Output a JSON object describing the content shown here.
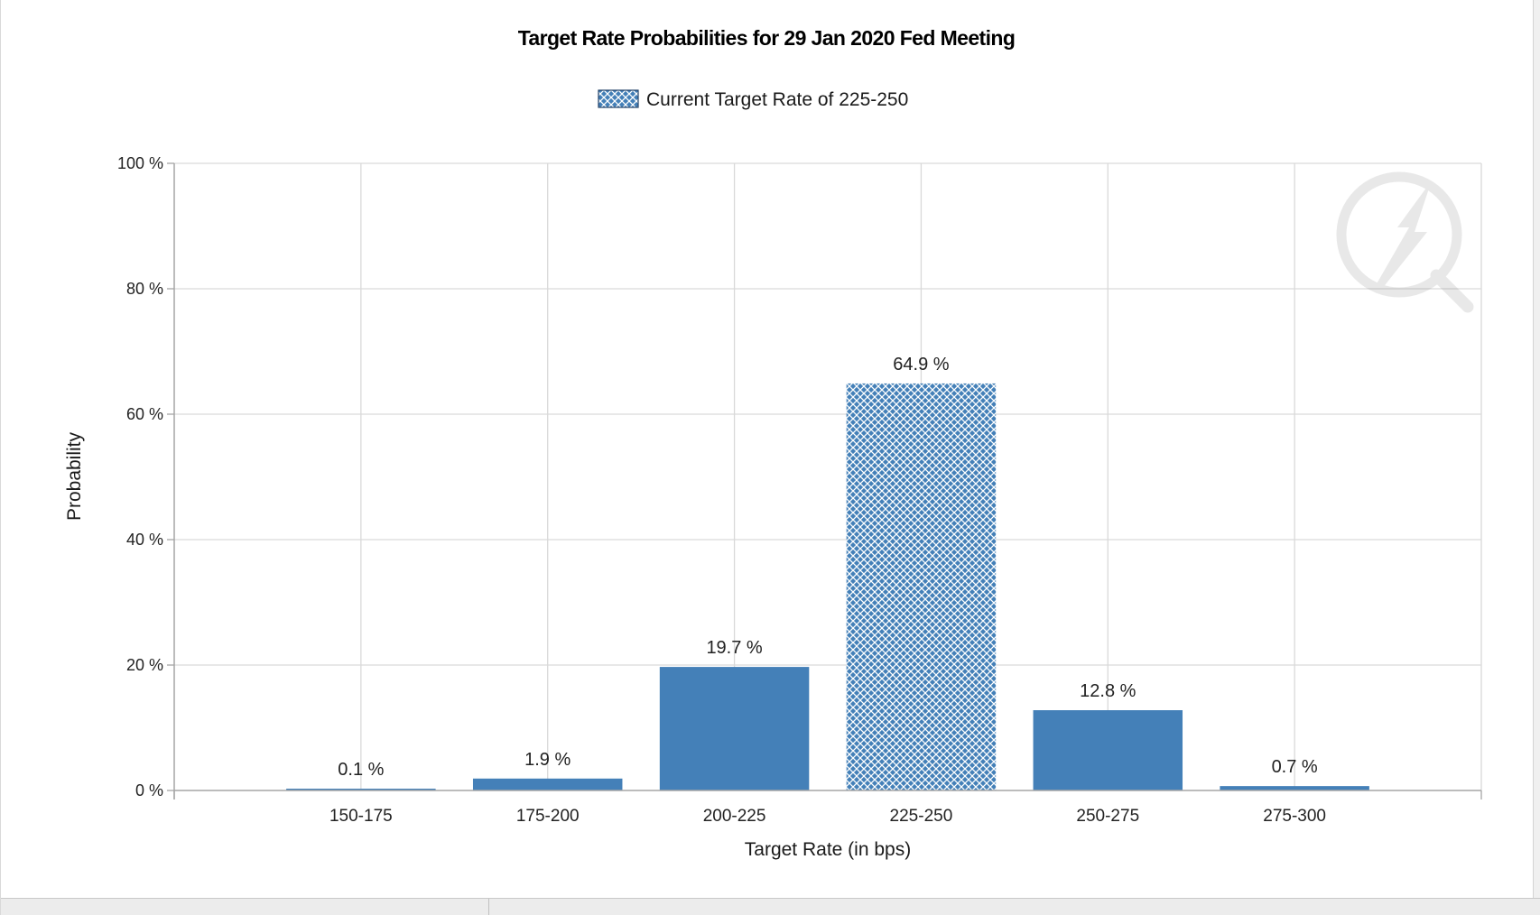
{
  "chart_data": {
    "type": "bar",
    "title": "Target Rate Probabilities for 29 Jan 2020 Fed Meeting",
    "legend": {
      "label": "Current Target Rate of 225-250",
      "placement": "top-center"
    },
    "categories": [
      "150-175",
      "175-200",
      "200-225",
      "225-250",
      "250-275",
      "275-300"
    ],
    "values": [
      0.1,
      1.9,
      19.7,
      64.9,
      12.8,
      0.7
    ],
    "data_labels": [
      "0.1 %",
      "1.9 %",
      "19.7 %",
      "64.9 %",
      "12.8 %",
      "0.7 %"
    ],
    "highlight_category": "225-250",
    "xlabel": "Target Rate (in bps)",
    "ylabel": "Probability",
    "ylim": [
      0,
      100
    ],
    "yticks": [
      0,
      20,
      40,
      60,
      80,
      100
    ],
    "ytick_labels": [
      "0 %",
      "20 %",
      "40 %",
      "60 %",
      "80 %",
      "100 %"
    ],
    "grid": true,
    "colors": {
      "bar": "#4480b8",
      "grid": "#d9d9d9",
      "axis": "#a6a6a6"
    }
  }
}
